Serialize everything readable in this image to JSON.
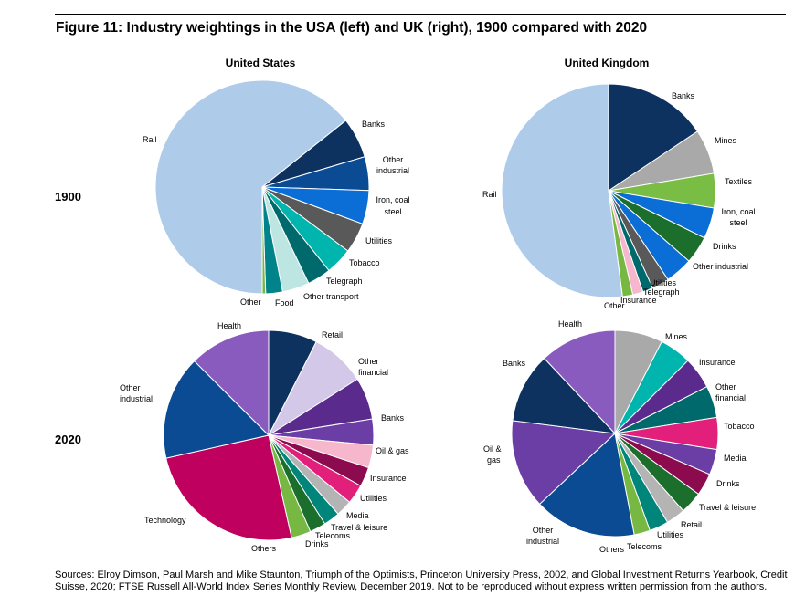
{
  "figure": {
    "title": "Figure 11: Industry weightings in the USA (left) and UK (right), 1900 compared with 2020",
    "source": "Sources: Elroy Dimson, Paul Marsh and Mike Staunton, Triumph of the Optimists, Princeton University Press, 2002, and Global Investment Returns Yearbook, Credit Suisse, 2020; FTSE Russell All-World Index Series Monthly Review, December 2019. Not to be reproduced without express written permission from the authors."
  },
  "colors": {
    "rail": "#aecbea",
    "banks_1900": "#0d325f",
    "other_industrial_us1900": "#0a4b94",
    "iron": "#0b6ed6",
    "utilities_1900": "#595959",
    "tobacco": "#00b5ad",
    "telegraph": "#00696b",
    "other_transport": "#bde6e3",
    "food": "#00838a",
    "other": "#77b843",
    "health": "#8a5bbf",
    "retail": "#0d325f",
    "other_financial": "#d3c8e8",
    "banks_2020": "#5a2a8c",
    "oil_gas": "#6a3ea5",
    "insurance": "#f6b6cc",
    "utilities_2020": "#8c0a4e",
    "media": "#e21f7a",
    "travel": "#b4b4b4",
    "telecoms": "#00857a",
    "drinks": "#1c6e2c",
    "technology": "#c0005f",
    "other_industrial_2020": "#0a4b94",
    "mines": "#a9a9a9",
    "textiles": "#7abd44",
    "uk_banks_2020": "#0d325f"
  },
  "chart_data": [
    {
      "type": "pie",
      "title": "United States",
      "row": "1900",
      "labels": [
        "Rail",
        "Banks",
        "Other industrial",
        "Iron, coal steel",
        "Utilities",
        "Tobacco",
        "Telegraph",
        "Other transport",
        "Food",
        "Other"
      ],
      "values": [
        63.0,
        6.0,
        5.0,
        5.0,
        4.5,
        4.0,
        3.5,
        4.0,
        2.5,
        0.5
      ]
    },
    {
      "type": "pie",
      "title": "United Kingdom",
      "row": "1900",
      "labels": [
        "Banks",
        "Mines",
        "Textiles",
        "Iron, coal steel",
        "Drinks",
        "Other industrial",
        "Utilities",
        "Telegraph",
        "Insurance",
        "Other",
        "Rail"
      ],
      "values": [
        15.0,
        6.5,
        5.0,
        4.5,
        4.0,
        4.0,
        2.5,
        1.5,
        1.5,
        1.5,
        50.0
      ]
    },
    {
      "type": "pie",
      "title": "United States",
      "row": "2020",
      "labels": [
        "Retail",
        "Other financial",
        "Banks",
        "Oil & gas",
        "Insurance",
        "Utilities",
        "Media",
        "Travel & leisure",
        "Telecoms",
        "Drinks",
        "Others",
        "Technology",
        "Other industrial",
        "Health"
      ],
      "values": [
        7.5,
        8.5,
        6.5,
        4.0,
        3.5,
        3.0,
        3.0,
        2.5,
        2.5,
        2.5,
        3.0,
        25.0,
        16.0,
        12.5
      ]
    },
    {
      "type": "pie",
      "title": "United Kingdom",
      "row": "2020",
      "labels": [
        "Mines",
        "Insurance",
        "Other financial",
        "Tobacco",
        "Media",
        "Drinks",
        "Travel & leisure",
        "Retail",
        "Utilities",
        "Telecoms",
        "Others",
        "Other industrial",
        "Oil & gas",
        "Banks",
        "Health"
      ],
      "values": [
        7.5,
        5.0,
        5.0,
        5.0,
        5.0,
        4.0,
        3.5,
        3.5,
        3.0,
        3.0,
        2.5,
        16.0,
        14.0,
        11.0,
        12.0
      ]
    }
  ],
  "labels": {
    "us1900": {
      "rail": "Rail",
      "banks": "Banks",
      "oi1": "Other",
      "oi2": "industrial",
      "iron1": "Iron, coal",
      "iron2": "steel",
      "util": "Utilities",
      "tob": "Tobacco",
      "tel": "Telegraph",
      "ot": "Other transport",
      "food": "Food",
      "other": "Other"
    },
    "uk1900": {
      "banks": "Banks",
      "mines": "Mines",
      "tex": "Textiles",
      "iron1": "Iron, coal",
      "iron2": "steel",
      "drinks": "Drinks",
      "oi": "Other industrial",
      "util": "Utilities",
      "tel": "Telegraph",
      "ins": "Insurance",
      "other": "Other",
      "rail": "Rail"
    },
    "us2020": {
      "health": "Health",
      "retail": "Retail",
      "of1": "Other",
      "of2": "financial",
      "banks": "Banks",
      "oil": "Oil & gas",
      "ins": "Insurance",
      "util": "Utilities",
      "media": "Media",
      "travel": "Travel & leisure",
      "tele": "Telecoms",
      "drinks": "Drinks",
      "others": "Others",
      "tech": "Technology",
      "oi1": "Other",
      "oi2": "industrial"
    },
    "uk2020": {
      "health": "Health",
      "mines": "Mines",
      "banks": "Banks",
      "ins": "Insurance",
      "of1": "Other",
      "of2": "financial",
      "tob": "Tobacco",
      "oil1": "Oil &",
      "oil2": "gas",
      "media": "Media",
      "drinks": "Drinks",
      "travel": "Travel & leisure",
      "retail": "Retail",
      "util": "Utilities",
      "oi1": "Other",
      "oi2": "industrial",
      "others": "Others",
      "tele": "Telecoms"
    }
  },
  "headers": {
    "us": "United States",
    "uk": "United Kingdom",
    "r1900": "1900",
    "r2020": "2020"
  }
}
